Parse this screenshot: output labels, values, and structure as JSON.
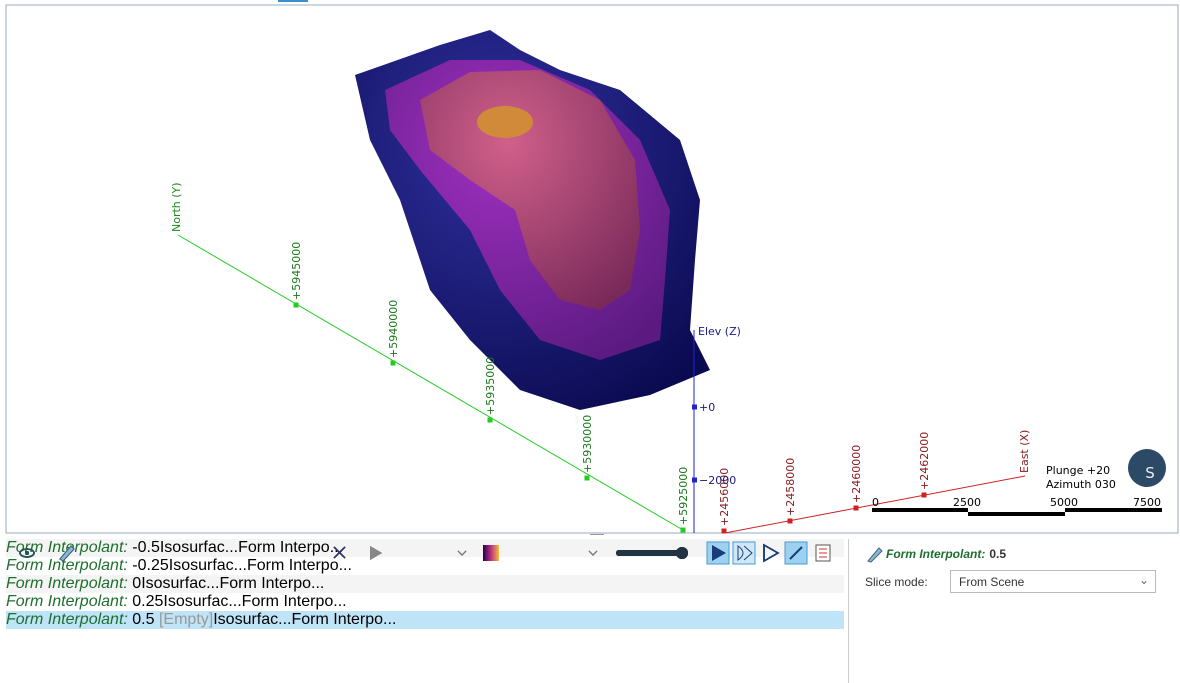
{
  "viewport": {
    "north_axis": {
      "label": "North (Y)",
      "ticks": [
        "+5945000",
        "+5940000",
        "+5935000",
        "+5930000",
        "+5925000"
      ]
    },
    "elev_axis": {
      "label": "Elev (Z)",
      "ticks": [
        "+0",
        "−2000"
      ]
    },
    "east_axis": {
      "label": "East (X)",
      "ticks": [
        "+2456000",
        "+2458000",
        "+2460000",
        "+2462000"
      ]
    },
    "scale_bar": [
      "0",
      "2500",
      "5000",
      "7500"
    ],
    "orientation": [
      "Plunge +20",
      "Azimuth 030"
    ],
    "globe_letter": "S"
  },
  "objects": {
    "rows": [
      {
        "name": "Form Interpolant:",
        "value": "-0.5",
        "surface": "Isosurfac...",
        "colormap": "Form Interpo...",
        "selected": false
      },
      {
        "name": "Form Interpolant:",
        "value": "-0.25",
        "surface": "Isosurfac...",
        "colormap": "Form Interpo...",
        "selected": false
      },
      {
        "name": "Form Interpolant:",
        "value": "0",
        "surface": "Isosurfac...",
        "colormap": "Form Interpo...",
        "selected": false
      },
      {
        "name": "Form Interpolant:",
        "value": "0.25",
        "surface": "Isosurfac...",
        "colormap": "Form Interpo...",
        "selected": false
      },
      {
        "name": "Form Interpolant:",
        "value": "0.5",
        "status": "[Empty]",
        "surface": "Isosurfac...",
        "colormap": "Form Interpo...",
        "selected": true
      }
    ]
  },
  "properties": {
    "title": "Form Interpolant:",
    "value": "0.5",
    "slice_mode_label": "Slice mode:",
    "slice_mode": "From Scene"
  }
}
